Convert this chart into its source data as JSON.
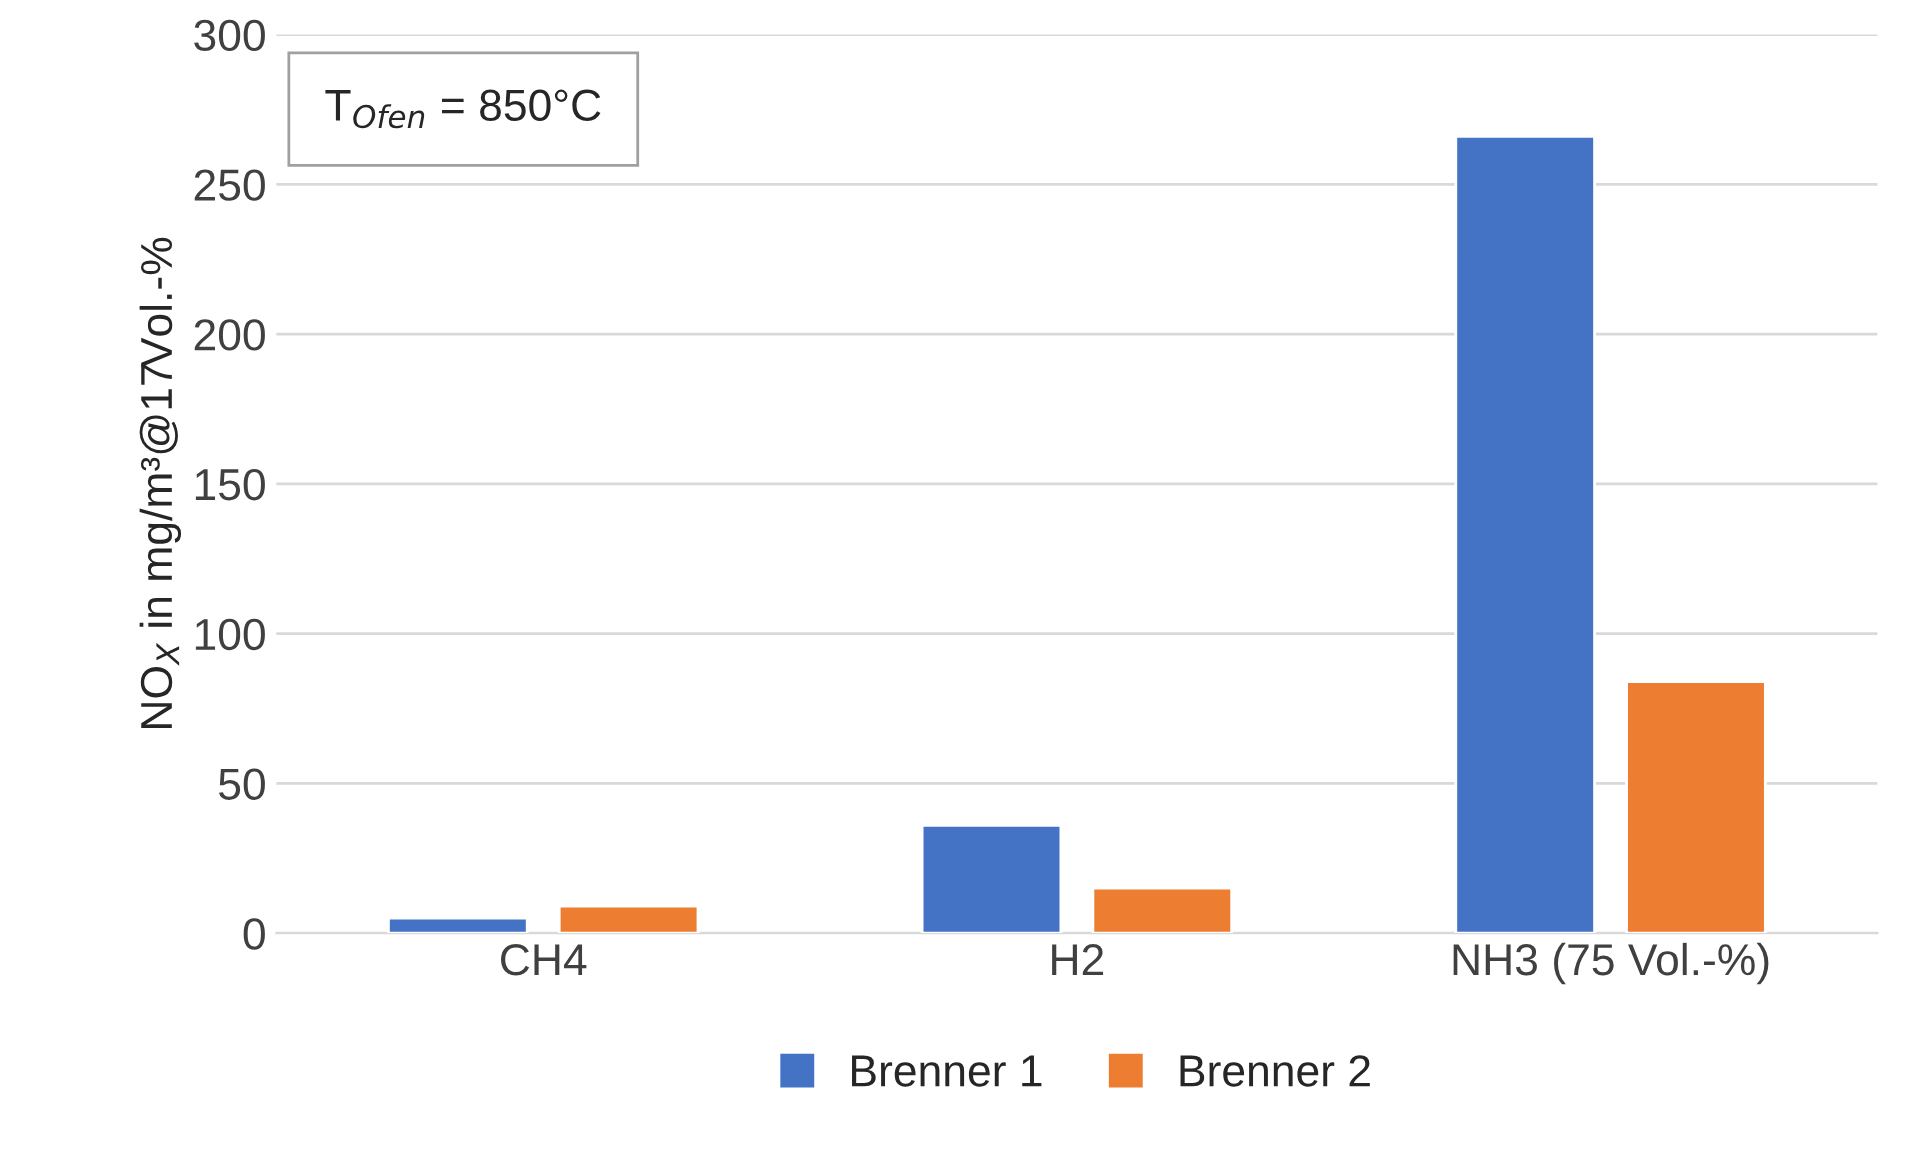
{
  "chart_data": {
    "type": "bar",
    "ylabel": "NO$_{X}$ in mg/m³@17Vol.-%",
    "categories": [
      "CH4",
      "H2",
      "NH3 (75 Vol.-%)"
    ],
    "series": [
      {
        "name": "Brenner 1",
        "color": "#4472c4",
        "values": [
          5,
          36,
          266
        ]
      },
      {
        "name": "Brenner 2",
        "color": "#ed7d31",
        "values": [
          9,
          15,
          84
        ]
      }
    ],
    "ylim": [
      0,
      300
    ],
    "yticks": [
      0,
      50,
      100,
      150,
      200,
      250,
      300
    ],
    "grid": "y",
    "legend": "bottom",
    "annotations": [
      "T$_{Ofen}$ = 850°C"
    ]
  }
}
